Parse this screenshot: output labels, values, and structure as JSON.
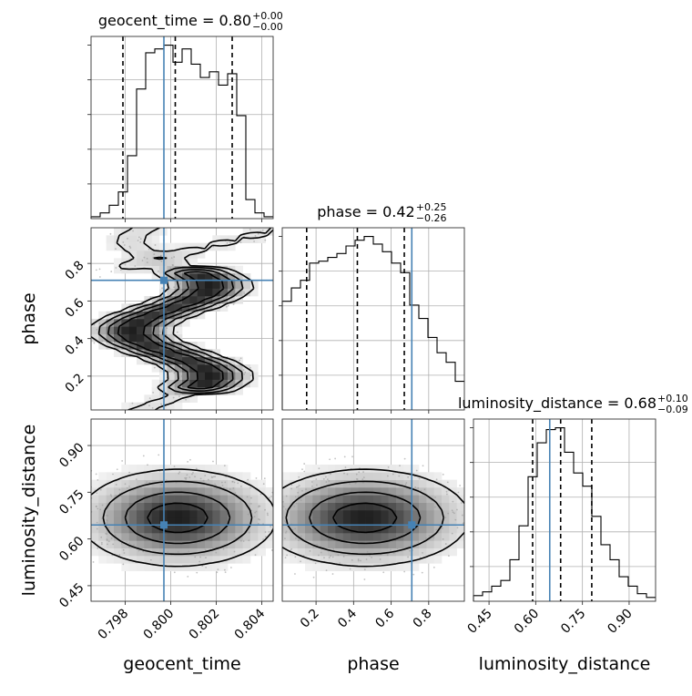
{
  "chart_data": {
    "type": "corner",
    "parameters": [
      "geocent_time",
      "phase",
      "luminosity_distance"
    ],
    "truths": {
      "geocent_time": 0.7997,
      "phase": 0.71,
      "luminosity_distance": 0.645
    },
    "ranges": {
      "geocent_time": [
        0.7965,
        0.8045
      ],
      "phase": [
        0.02,
        0.99
      ],
      "luminosity_distance": [
        0.4,
        0.985
      ]
    },
    "tick_labels": {
      "geocent_time": [
        "0.798",
        "0.800",
        "0.802",
        "0.804"
      ],
      "phase": [
        "0.2",
        "0.4",
        "0.6",
        "0.8"
      ],
      "luminosity_distance": [
        "0.45",
        "0.60",
        "0.75",
        "0.90"
      ]
    },
    "axis_labels": {
      "x": [
        "geocent_time",
        "phase",
        "luminosity_distance"
      ],
      "y": [
        "phase",
        "luminosity_distance"
      ]
    },
    "titles": [
      {
        "text": "geocent_time = 0.80",
        "sup": "+0.00",
        "sub": "−0.00"
      },
      {
        "text": "phase = 0.42",
        "sup": "+0.25",
        "sub": "−0.26"
      },
      {
        "text": "luminosity_distance = 0.68",
        "sup": "+0.10",
        "sub": "−0.09"
      }
    ],
    "quantiles": {
      "geocent_time": [
        0.7979,
        0.8002,
        0.8027
      ],
      "phase": [
        0.15,
        0.42,
        0.67
      ],
      "luminosity_distance": [
        0.59,
        0.68,
        0.78
      ]
    },
    "histograms": {
      "geocent_time": {
        "edges": [
          0.7965,
          0.7969,
          0.7973,
          0.7977,
          0.7981,
          0.7985,
          0.7989,
          0.7993,
          0.7997,
          0.8001,
          0.8005,
          0.8009,
          0.8013,
          0.8017,
          0.8021,
          0.8025,
          0.8029,
          0.8033,
          0.8037,
          0.8041,
          0.8045
        ],
        "counts": [
          1,
          3,
          7,
          14,
          33,
          68,
          87,
          89,
          91,
          82,
          89,
          81,
          74,
          77,
          70,
          76,
          54,
          10,
          3,
          1
        ]
      },
      "phase": {
        "edges": [
          0.02,
          0.0685,
          0.117,
          0.1655,
          0.214,
          0.2625,
          0.311,
          0.3595,
          0.408,
          0.4565,
          0.505,
          0.5535,
          0.602,
          0.6505,
          0.699,
          0.7475,
          0.796,
          0.8445,
          0.893,
          0.9415,
          0.99
        ],
        "counts": [
          57,
          64,
          68,
          77,
          78,
          80,
          82,
          86,
          89,
          91,
          87,
          83,
          77,
          72,
          55,
          48,
          38,
          30,
          25,
          15
        ]
      },
      "luminosity_distance": {
        "edges": [
          0.4,
          0.42925,
          0.4585,
          0.48775,
          0.517,
          0.54625,
          0.5755,
          0.60475,
          0.634,
          0.66325,
          0.6925,
          0.72175,
          0.751,
          0.78025,
          0.8095,
          0.83875,
          0.868,
          0.89725,
          0.9265,
          0.95575,
          0.985
        ],
        "counts": [
          3,
          5,
          8,
          11,
          22,
          40,
          66,
          84,
          91,
          92,
          79,
          68,
          61,
          45,
          30,
          22,
          13,
          8,
          4,
          2
        ]
      }
    },
    "grid": true
  }
}
